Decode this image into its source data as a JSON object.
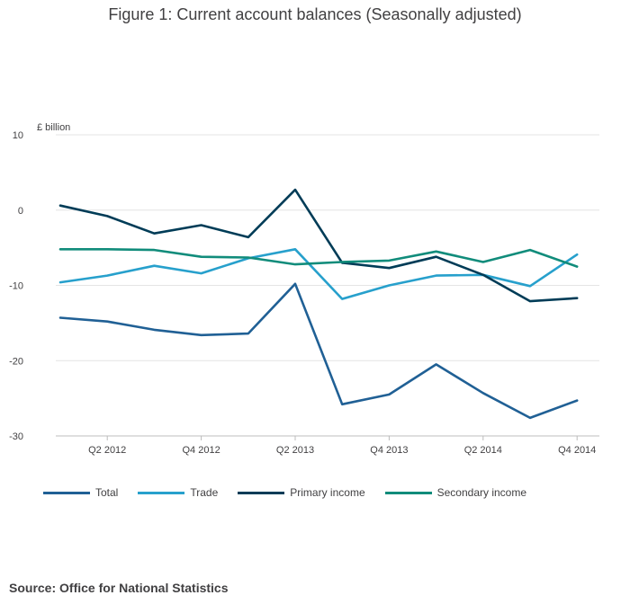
{
  "title": "Figure 1: Current account balances (Seasonally adjusted)",
  "source": "Source: Office for National Statistics",
  "chart_data": {
    "type": "line",
    "unit_label": "£ billion",
    "ylim": [
      -30,
      10
    ],
    "yticks": [
      10,
      0,
      -10,
      -20,
      -30
    ],
    "ytick_labels": [
      "10",
      "0",
      "-10",
      "-20",
      "-30"
    ],
    "x": [
      "Q1 2012",
      "Q2 2012",
      "Q3 2012",
      "Q4 2012",
      "Q1 2013",
      "Q2 2013",
      "Q3 2013",
      "Q4 2013",
      "Q1 2014",
      "Q2 2014",
      "Q3 2014",
      "Q4 2014"
    ],
    "xtick_labels": [
      "Q2 2012",
      "Q4 2012",
      "Q2 2013",
      "Q4 2013",
      "Q2 2014",
      "Q4 2014"
    ],
    "grid": true,
    "legend_position": "bottom",
    "series": [
      {
        "name": "Total",
        "color": "#206095",
        "values": [
          -14.3,
          -14.8,
          -15.9,
          -16.6,
          -16.4,
          -9.8,
          -25.8,
          -24.5,
          -20.5,
          -24.3,
          -27.6,
          -25.3
        ]
      },
      {
        "name": "Trade",
        "color": "#27a0cc",
        "values": [
          -9.6,
          -8.7,
          -7.4,
          -8.4,
          -6.4,
          -5.2,
          -11.8,
          -10.0,
          -8.7,
          -8.6,
          -10.1,
          -5.9
        ]
      },
      {
        "name": "Primary income",
        "color": "#003c57",
        "values": [
          0.6,
          -0.8,
          -3.1,
          -2.0,
          -3.6,
          2.7,
          -7.0,
          -7.7,
          -6.2,
          -8.6,
          -12.1,
          -11.7
        ]
      },
      {
        "name": "Secondary income",
        "color": "#118c7b",
        "values": [
          -5.2,
          -5.2,
          -5.3,
          -6.2,
          -6.3,
          -7.2,
          -6.9,
          -6.7,
          -5.5,
          -6.9,
          -5.3,
          -7.5
        ]
      }
    ]
  }
}
